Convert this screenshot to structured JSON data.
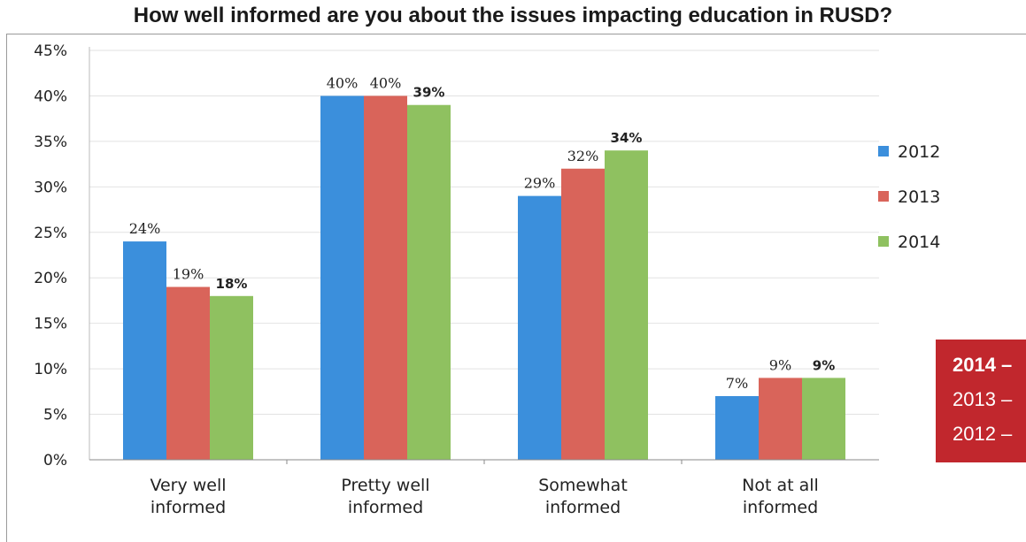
{
  "chart_data": {
    "type": "bar",
    "title": "How well informed are you about the issues impacting education in RUSD?",
    "categories": [
      [
        "Very well",
        "informed"
      ],
      [
        "Pretty well",
        "informed"
      ],
      [
        "Somewhat",
        "informed"
      ],
      [
        "Not at all",
        "informed"
      ]
    ],
    "series": [
      {
        "name": "2012",
        "color": "#3b8fdc",
        "values": [
          24,
          40,
          29,
          7
        ],
        "labels": [
          "24%",
          "40%",
          "29%",
          "7%"
        ]
      },
      {
        "name": "2013",
        "color": "#d9645a",
        "values": [
          19,
          40,
          32,
          9
        ],
        "labels": [
          "19%",
          "40%",
          "32%",
          "9%"
        ]
      },
      {
        "name": "2014",
        "color": "#8fc160",
        "values": [
          18,
          39,
          34,
          9
        ],
        "labels": [
          "18%",
          "39%",
          "34%",
          "9%"
        ],
        "label_color": "#d9463a"
      }
    ],
    "y_ticks": [
      "0%",
      "5%",
      "10%",
      "15%",
      "20%",
      "25%",
      "30%",
      "35%",
      "40%",
      "45%"
    ],
    "ylim": [
      0,
      45
    ],
    "grid": true,
    "legend_position": "right"
  },
  "callout": {
    "background": "#c1272d",
    "lines": [
      "2014 –",
      "2013 –",
      "2012 –"
    ]
  }
}
